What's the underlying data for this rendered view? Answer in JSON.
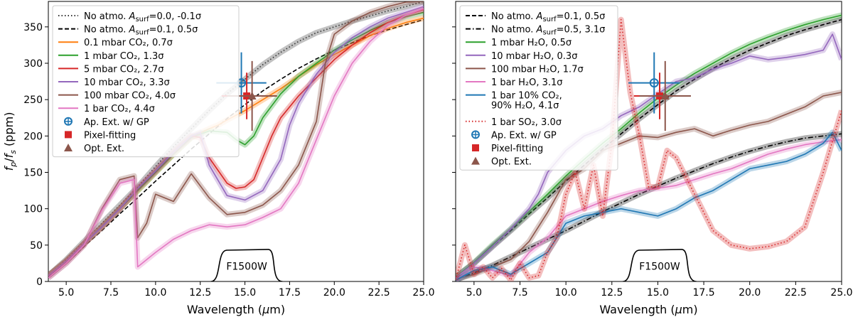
{
  "chart_data": [
    {
      "type": "line",
      "panel": "left",
      "xlabel": "Wavelength (μm)",
      "ylabel": "f_p/f_s (ppm)",
      "xlim": [
        4.0,
        25.0
      ],
      "ylim": [
        0,
        385
      ],
      "xticks": [
        "5.0",
        "7.5",
        "10.0",
        "12.5",
        "15.0",
        "17.5",
        "20.0",
        "22.5",
        "25.0"
      ],
      "yticks": [
        "0",
        "50",
        "100",
        "150",
        "200",
        "250",
        "300",
        "350"
      ],
      "band_label": "F1500W",
      "legend_position": "top-left",
      "series": [
        {
          "name": "No atmo. A_surf=0.0, -0.1σ",
          "label_main": "No atmo. ",
          "label_sub": "surf",
          "label_tail": "=0.0, -0.1σ",
          "color": "#333333",
          "style": "dotted",
          "band": true,
          "x": [
            4,
            5,
            6,
            7,
            8,
            9,
            10,
            11,
            12,
            13,
            14,
            15,
            16,
            17,
            18,
            19,
            20,
            21,
            22,
            23,
            24,
            25
          ],
          "y": [
            8,
            30,
            55,
            80,
            105,
            130,
            158,
            185,
            210,
            235,
            258,
            278,
            298,
            315,
            330,
            342,
            350,
            358,
            365,
            372,
            378,
            385
          ]
        },
        {
          "name": "No atmo. A_surf=0.1, 0.5σ",
          "label_main": "No atmo. ",
          "label_sub": "surf",
          "label_tail": "=0.1, 0.5σ",
          "color": "#000000",
          "style": "dashed",
          "band": false,
          "x": [
            4,
            5,
            6,
            7,
            8,
            9,
            10,
            11,
            12,
            13,
            14,
            15,
            16,
            17,
            18,
            19,
            20,
            21,
            22,
            23,
            24,
            25
          ],
          "y": [
            6,
            25,
            48,
            70,
            93,
            115,
            138,
            160,
            182,
            203,
            224,
            243,
            262,
            278,
            293,
            306,
            318,
            328,
            338,
            346,
            353,
            360
          ]
        },
        {
          "name": "0.1 mbar CO2, 0.7σ",
          "color": "#ff7f0e",
          "style": "solid",
          "band": true,
          "x": [
            4,
            5,
            6,
            7,
            8,
            9,
            10,
            11,
            12,
            13,
            13.5,
            14,
            15,
            16,
            17,
            18,
            19,
            20,
            21,
            22,
            23,
            24,
            25
          ],
          "y": [
            8,
            28,
            52,
            75,
            100,
            125,
            150,
            175,
            198,
            210,
            215,
            222,
            235,
            250,
            265,
            282,
            298,
            312,
            325,
            338,
            348,
            356,
            362
          ]
        },
        {
          "name": "1 mbar CO2, 1.3σ",
          "color": "#2ca02c",
          "style": "solid",
          "band": true,
          "x": [
            4,
            5,
            6,
            7,
            8,
            9,
            10,
            11,
            12,
            13,
            14,
            14.5,
            15,
            15.5,
            16,
            17,
            18,
            19,
            20,
            21,
            22,
            23,
            24,
            25
          ],
          "y": [
            8,
            28,
            52,
            75,
            100,
            125,
            150,
            175,
            198,
            207,
            205,
            195,
            188,
            200,
            225,
            258,
            282,
            300,
            318,
            332,
            345,
            356,
            364,
            370
          ]
        },
        {
          "name": "5 mbar CO2, 2.7σ",
          "color": "#d62728",
          "style": "solid",
          "band": true,
          "x": [
            4,
            5,
            6,
            7,
            8,
            9,
            10,
            11,
            12,
            12.5,
            13,
            14,
            14.5,
            15,
            15.5,
            16,
            16.5,
            17,
            18,
            19,
            20,
            21,
            22,
            23,
            24,
            25
          ],
          "y": [
            8,
            28,
            52,
            75,
            100,
            128,
            152,
            178,
            200,
            198,
            170,
            135,
            128,
            130,
            140,
            170,
            200,
            225,
            255,
            280,
            305,
            325,
            342,
            356,
            366,
            374
          ]
        },
        {
          "name": "10 mbar CO2, 3.3σ",
          "color": "#9467bd",
          "style": "solid",
          "band": true,
          "x": [
            4,
            5,
            6,
            7,
            8,
            9,
            10,
            11,
            12,
            12.5,
            13,
            14,
            15,
            16,
            17,
            17.5,
            18,
            19,
            20,
            21,
            22,
            23,
            24,
            25
          ],
          "y": [
            8,
            28,
            52,
            75,
            100,
            128,
            152,
            178,
            200,
            205,
            160,
            118,
            112,
            125,
            168,
            215,
            245,
            285,
            315,
            335,
            350,
            362,
            370,
            378
          ]
        },
        {
          "name": "100 mbar CO2, 4.0σ",
          "color": "#8c564b",
          "style": "solid",
          "band": true,
          "x": [
            4,
            5,
            6,
            7,
            8,
            8.8,
            9,
            9.5,
            10,
            11,
            12,
            13,
            14,
            15,
            16,
            17,
            18,
            19,
            19.5,
            20,
            21,
            22,
            23,
            24,
            25
          ],
          "y": [
            5,
            25,
            50,
            100,
            140,
            145,
            60,
            80,
            120,
            110,
            148,
            115,
            92,
            95,
            105,
            125,
            160,
            220,
            300,
            340,
            358,
            370,
            378,
            384,
            385
          ]
        },
        {
          "name": "1 bar CO2, 4.4σ",
          "color": "#e377c2",
          "style": "solid",
          "band": true,
          "x": [
            4,
            5,
            6,
            7,
            8,
            8.8,
            9,
            10,
            11,
            12,
            13,
            14,
            15,
            16,
            17,
            18,
            19,
            20,
            21,
            22,
            23,
            24,
            25
          ],
          "y": [
            5,
            25,
            50,
            98,
            135,
            140,
            20,
            40,
            58,
            70,
            78,
            75,
            78,
            88,
            100,
            135,
            195,
            255,
            300,
            330,
            352,
            366,
            375
          ]
        }
      ],
      "points": [
        {
          "name": "Ap. Ext. w/ GP",
          "color": "#1f77b4",
          "marker": "circle-plus",
          "x": 14.8,
          "y": 273,
          "xerr": 1.4,
          "yerr": 42
        },
        {
          "name": "Pixel-fitting",
          "color": "#d62728",
          "marker": "square",
          "x": 15.1,
          "y": 255,
          "xerr": 1.4,
          "yerr": 32
        },
        {
          "name": "Opt. Ext.",
          "color": "#8c564b",
          "marker": "triangle",
          "x": 15.4,
          "y": 255,
          "xerr": 1.4,
          "yerr": 48
        }
      ]
    },
    {
      "type": "line",
      "panel": "right",
      "xlabel": "Wavelength (μm)",
      "ylabel": "",
      "xlim": [
        4.0,
        25.0
      ],
      "ylim": [
        0,
        385
      ],
      "xticks": [
        "5.0",
        "7.5",
        "10.0",
        "12.5",
        "15.0",
        "17.5",
        "20.0",
        "22.5",
        "25.0"
      ],
      "yticks": [],
      "band_label": "F1500W",
      "legend_position": "top-left",
      "series": [
        {
          "name": "No atmo. A_surf=0.1, 0.5σ",
          "label_main": "No atmo. ",
          "label_sub": "surf",
          "label_tail": "=0.1, 0.5σ",
          "color": "#000000",
          "style": "dashed",
          "band": true,
          "x": [
            4,
            5,
            6,
            7,
            8,
            9,
            10,
            11,
            12,
            13,
            14,
            15,
            16,
            17,
            18,
            19,
            20,
            21,
            22,
            23,
            24,
            25
          ],
          "y": [
            6,
            25,
            48,
            70,
            93,
            115,
            138,
            160,
            182,
            203,
            224,
            243,
            262,
            278,
            293,
            306,
            318,
            328,
            338,
            346,
            353,
            360
          ]
        },
        {
          "name": "No atmo. A_surf=0.5, 3.1σ",
          "label_main": "No atmo. ",
          "label_sub": "surf",
          "label_tail": "=0.5, 3.1σ",
          "color": "#000000",
          "style": "dashdot",
          "band": true,
          "x": [
            4,
            5,
            6,
            7,
            8,
            9,
            10,
            11,
            12,
            13,
            14,
            15,
            16,
            17,
            18,
            19,
            20,
            21,
            22,
            23,
            24,
            25
          ],
          "y": [
            2,
            12,
            22,
            34,
            46,
            58,
            70,
            83,
            96,
            108,
            120,
            131,
            142,
            152,
            162,
            171,
            179,
            186,
            192,
            197,
            200,
            203
          ]
        },
        {
          "name": "1 mbar H2O, 0.5σ",
          "color": "#2ca02c",
          "style": "solid",
          "band": true,
          "x": [
            4,
            5,
            6,
            7,
            8,
            9,
            10,
            11,
            12,
            13,
            14,
            15,
            16,
            17,
            18,
            19,
            20,
            21,
            22,
            23,
            24,
            25
          ],
          "y": [
            6,
            26,
            50,
            72,
            96,
            120,
            145,
            168,
            190,
            210,
            232,
            252,
            270,
            286,
            300,
            314,
            326,
            336,
            345,
            353,
            360,
            366
          ]
        },
        {
          "name": "10 mbar H2O, 0.3σ",
          "color": "#9467bd",
          "style": "solid",
          "band": true,
          "x": [
            4,
            5,
            6,
            7,
            8,
            8.5,
            9,
            10,
            11,
            12,
            13,
            14,
            15,
            16,
            17,
            18,
            19,
            20,
            21,
            22,
            23,
            24,
            24.5,
            25
          ],
          "y": [
            5,
            25,
            48,
            72,
            100,
            120,
            150,
            180,
            200,
            210,
            228,
            240,
            258,
            275,
            280,
            292,
            300,
            310,
            305,
            308,
            312,
            318,
            340,
            305
          ]
        },
        {
          "name": "100 mbar H2O, 1.7σ",
          "color": "#8c564b",
          "style": "solid",
          "band": true,
          "x": [
            4,
            5,
            6,
            7,
            8,
            9,
            10,
            11,
            12,
            13,
            14,
            15,
            16,
            17,
            18,
            19,
            20,
            21,
            22,
            23,
            24,
            25
          ],
          "y": [
            3,
            10,
            20,
            30,
            55,
            95,
            140,
            155,
            180,
            190,
            200,
            198,
            205,
            210,
            200,
            208,
            215,
            220,
            230,
            240,
            255,
            260
          ]
        },
        {
          "name": "1 bar H2O, 3.1σ",
          "color": "#e377c2",
          "style": "solid",
          "band": true,
          "x": [
            4,
            5,
            6,
            7,
            8,
            9,
            10,
            11,
            12,
            13,
            14,
            15,
            16,
            17,
            18,
            19,
            20,
            21,
            22,
            23,
            24,
            25
          ],
          "y": [
            2,
            20,
            15,
            8,
            40,
            60,
            90,
            100,
            110,
            118,
            125,
            128,
            132,
            140,
            148,
            155,
            165,
            175,
            182,
            188,
            192,
            195
          ]
        },
        {
          "name": "1 bar 10% CO2, 90% H2O, 4.1σ",
          "label_line1": "1 bar 10% CO₂,",
          "label_line2": "90% H₂O, 4.1σ",
          "color": "#1f77b4",
          "style": "solid",
          "band": true,
          "x": [
            4,
            5,
            6,
            7,
            8,
            9,
            10,
            11,
            12,
            13,
            14,
            15,
            16,
            17,
            18,
            19,
            20,
            21,
            22,
            23,
            24,
            24.5,
            25
          ],
          "y": [
            2,
            15,
            20,
            10,
            25,
            40,
            80,
            90,
            95,
            100,
            95,
            90,
            100,
            115,
            125,
            140,
            155,
            160,
            165,
            175,
            190,
            205,
            180
          ]
        },
        {
          "name": "1 bar SO2, 3.0σ",
          "color": "#d62728",
          "style": "dotted",
          "band": true,
          "x": [
            4,
            4.5,
            5,
            5.5,
            6,
            6.5,
            7,
            7.5,
            8,
            8.5,
            9,
            9.5,
            10,
            10.5,
            11,
            11.5,
            12,
            12.5,
            13,
            13.5,
            14,
            14.5,
            15,
            15.5,
            16,
            17,
            18,
            19,
            20,
            21,
            22,
            23,
            24,
            25
          ],
          "y": [
            2,
            50,
            10,
            20,
            5,
            18,
            2,
            25,
            5,
            8,
            40,
            60,
            120,
            150,
            100,
            160,
            90,
            190,
            360,
            260,
            200,
            130,
            130,
            180,
            170,
            120,
            70,
            50,
            45,
            48,
            55,
            75,
            150,
            235
          ]
        }
      ],
      "points": [
        {
          "name": "Ap. Ext. w/ GP",
          "color": "#1f77b4",
          "marker": "circle-plus",
          "x": 14.8,
          "y": 273,
          "xerr": 1.4,
          "yerr": 42
        },
        {
          "name": "Pixel-fitting",
          "color": "#d62728",
          "marker": "square",
          "x": 15.1,
          "y": 255,
          "xerr": 1.4,
          "yerr": 32
        },
        {
          "name": "Opt. Ext.",
          "color": "#8c564b",
          "marker": "triangle",
          "x": 15.4,
          "y": 255,
          "xerr": 1.4,
          "yerr": 48
        }
      ]
    }
  ]
}
